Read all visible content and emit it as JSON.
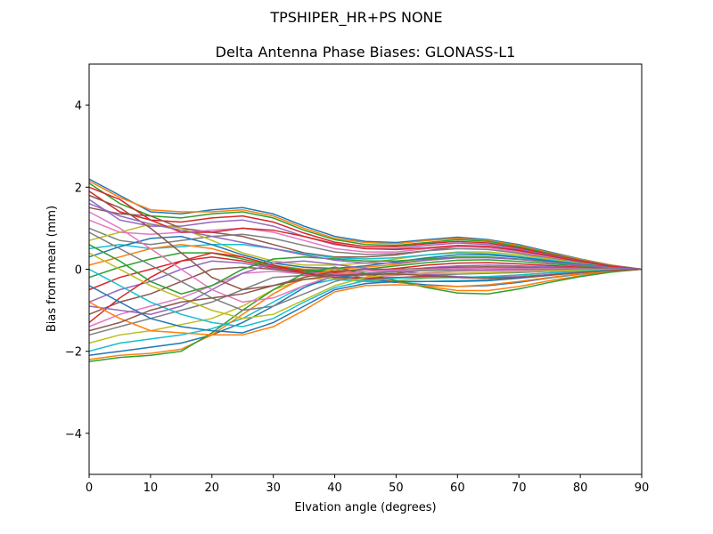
{
  "suptitle": "TPSHIPER_HR+PS  NONE",
  "chart_data": {
    "type": "line",
    "title": "Delta Antenna Phase Biases: GLONASS-L1",
    "xlabel": "Elvation angle (degrees)",
    "ylabel": "Bias from mean (mm)",
    "xlim": [
      0,
      90
    ],
    "ylim": [
      -5,
      5
    ],
    "xticks": [
      0,
      10,
      20,
      30,
      40,
      50,
      60,
      70,
      80,
      90
    ],
    "yticks": [
      -4,
      -2,
      0,
      2,
      4
    ],
    "ytick_labels": [
      "−4",
      "−2",
      "0",
      "2",
      "4"
    ],
    "grid": false,
    "legend": false,
    "colors": [
      "#1f77b4",
      "#ff7f0e",
      "#2ca02c",
      "#d62728",
      "#9467bd",
      "#8c564b",
      "#e377c2",
      "#7f7f7f",
      "#bcbd22",
      "#17becf"
    ],
    "x": [
      0,
      5,
      10,
      15,
      20,
      25,
      30,
      35,
      40,
      45,
      50,
      55,
      60,
      65,
      70,
      75,
      80,
      85,
      90
    ],
    "series": [
      {
        "values": [
          2.2,
          1.8,
          1.4,
          1.35,
          1.45,
          1.5,
          1.35,
          1.05,
          0.8,
          0.68,
          0.65,
          0.72,
          0.78,
          0.72,
          0.6,
          0.42,
          0.25,
          0.1,
          0
        ]
      },
      {
        "values": [
          2.15,
          1.75,
          1.45,
          1.4,
          1.4,
          1.45,
          1.3,
          1.0,
          0.75,
          0.65,
          0.62,
          0.7,
          0.75,
          0.7,
          0.58,
          0.4,
          0.24,
          0.1,
          0
        ]
      },
      {
        "values": [
          2.1,
          1.6,
          1.3,
          1.25,
          1.35,
          1.4,
          1.25,
          0.95,
          0.72,
          0.6,
          0.58,
          0.65,
          0.72,
          0.68,
          0.55,
          0.38,
          0.22,
          0.09,
          0
        ]
      },
      {
        "values": [
          1.9,
          1.4,
          1.2,
          1.15,
          1.25,
          1.3,
          1.15,
          0.88,
          0.66,
          0.55,
          0.55,
          0.62,
          0.68,
          0.64,
          0.52,
          0.36,
          0.21,
          0.08,
          0
        ]
      },
      {
        "values": [
          1.7,
          1.2,
          1.05,
          1.05,
          1.15,
          1.2,
          1.05,
          0.8,
          0.6,
          0.5,
          0.5,
          0.58,
          0.64,
          0.6,
          0.49,
          0.34,
          0.2,
          0.08,
          0
        ]
      },
      {
        "values": [
          1.5,
          1.35,
          1.3,
          1.0,
          0.9,
          0.8,
          0.6,
          0.4,
          0.3,
          0.3,
          0.35,
          0.45,
          0.55,
          0.55,
          0.45,
          0.31,
          0.18,
          0.07,
          0
        ]
      },
      {
        "values": [
          1.2,
          0.9,
          0.85,
          0.9,
          0.95,
          1.0,
          0.9,
          0.7,
          0.5,
          0.42,
          0.42,
          0.5,
          0.55,
          0.52,
          0.42,
          0.3,
          0.17,
          0.07,
          0
        ]
      },
      {
        "values": [
          1.0,
          0.7,
          0.6,
          0.7,
          0.8,
          0.85,
          0.75,
          0.58,
          0.42,
          0.36,
          0.38,
          0.45,
          0.5,
          0.48,
          0.39,
          0.27,
          0.16,
          0.06,
          0
        ]
      },
      {
        "values": [
          0.7,
          0.9,
          1.1,
          1.0,
          0.7,
          0.4,
          0.2,
          0.1,
          0.1,
          0.15,
          0.25,
          0.35,
          0.42,
          0.42,
          0.35,
          0.25,
          0.14,
          0.06,
          0
        ]
      },
      {
        "values": [
          0.5,
          0.6,
          0.5,
          0.55,
          0.6,
          0.6,
          0.5,
          0.38,
          0.28,
          0.25,
          0.28,
          0.35,
          0.4,
          0.38,
          0.31,
          0.22,
          0.13,
          0.05,
          0
        ]
      },
      {
        "values": [
          0.3,
          0.55,
          0.75,
          0.8,
          0.6,
          0.35,
          0.15,
          0.05,
          0.02,
          0.08,
          0.18,
          0.28,
          0.35,
          0.35,
          0.29,
          0.2,
          0.12,
          0.05,
          0
        ]
      },
      {
        "values": [
          0.1,
          0.3,
          0.5,
          0.6,
          0.5,
          0.3,
          0.1,
          0.0,
          0.0,
          0.05,
          0.12,
          0.22,
          0.28,
          0.29,
          0.24,
          0.17,
          0.1,
          0.04,
          0
        ]
      },
      {
        "values": [
          -0.2,
          0.05,
          0.25,
          0.4,
          0.4,
          0.25,
          0.08,
          -0.02,
          -0.05,
          0.0,
          0.08,
          0.16,
          0.22,
          0.23,
          0.19,
          0.13,
          0.08,
          0.03,
          0
        ]
      },
      {
        "values": [
          -0.5,
          -0.2,
          0.0,
          0.2,
          0.3,
          0.2,
          0.05,
          -0.05,
          -0.08,
          -0.05,
          0.02,
          0.1,
          0.15,
          0.16,
          0.13,
          0.09,
          0.05,
          0.02,
          0
        ]
      },
      {
        "values": [
          -0.8,
          -0.5,
          -0.3,
          0.0,
          0.2,
          0.15,
          0.02,
          -0.08,
          -0.12,
          -0.1,
          -0.04,
          0.04,
          0.08,
          0.1,
          0.08,
          0.06,
          0.03,
          0.01,
          0
        ]
      },
      {
        "values": [
          -1.1,
          -0.8,
          -0.6,
          -0.3,
          0.0,
          0.05,
          0.0,
          -0.1,
          -0.15,
          -0.15,
          -0.1,
          -0.02,
          0.02,
          0.03,
          0.03,
          0.02,
          0.01,
          0.0,
          0
        ]
      },
      {
        "values": [
          -1.4,
          -1.1,
          -0.9,
          -0.7,
          -0.4,
          -0.1,
          -0.05,
          -0.12,
          -0.18,
          -0.2,
          -0.15,
          -0.08,
          -0.05,
          -0.04,
          -0.03,
          -0.02,
          -0.01,
          0.0,
          0
        ]
      },
      {
        "values": [
          -1.6,
          -1.4,
          -1.2,
          -1.0,
          -0.8,
          -0.5,
          -0.2,
          -0.15,
          -0.2,
          -0.25,
          -0.22,
          -0.15,
          -0.12,
          -0.1,
          -0.08,
          -0.05,
          -0.03,
          -0.01,
          0
        ]
      },
      {
        "values": [
          -1.8,
          -1.6,
          -1.5,
          -1.35,
          -1.2,
          -0.9,
          -0.5,
          -0.25,
          -0.22,
          -0.28,
          -0.28,
          -0.22,
          -0.2,
          -0.18,
          -0.14,
          -0.09,
          -0.05,
          -0.02,
          0
        ]
      },
      {
        "values": [
          -2.0,
          -1.8,
          -1.7,
          -1.6,
          -1.45,
          -1.2,
          -0.8,
          -0.4,
          -0.25,
          -0.3,
          -0.32,
          -0.3,
          -0.28,
          -0.26,
          -0.2,
          -0.13,
          -0.07,
          -0.03,
          0
        ]
      },
      {
        "values": [
          -2.1,
          -2.0,
          -1.9,
          -1.8,
          -1.6,
          -1.3,
          -0.9,
          -0.45,
          -0.15,
          -0.22,
          -0.32,
          -0.38,
          -0.42,
          -0.4,
          -0.32,
          -0.21,
          -0.12,
          -0.05,
          0
        ]
      },
      {
        "values": [
          -2.2,
          -2.1,
          -2.05,
          -1.95,
          -1.6,
          -1.1,
          -0.6,
          -0.2,
          0.0,
          -0.15,
          -0.3,
          -0.42,
          -0.52,
          -0.52,
          -0.42,
          -0.28,
          -0.16,
          -0.06,
          0
        ]
      },
      {
        "values": [
          -2.25,
          -2.15,
          -2.1,
          -2.0,
          -1.55,
          -1.0,
          -0.5,
          -0.1,
          0.05,
          -0.1,
          -0.28,
          -0.45,
          -0.58,
          -0.6,
          -0.48,
          -0.32,
          -0.18,
          -0.07,
          0
        ]
      },
      {
        "values": [
          -1.3,
          -0.7,
          -0.2,
          0.2,
          0.4,
          0.3,
          0.1,
          -0.1,
          -0.2,
          -0.22,
          -0.2,
          -0.18,
          -0.2,
          -0.22,
          -0.2,
          -0.14,
          -0.08,
          -0.03,
          0
        ]
      },
      {
        "values": [
          -0.9,
          -1.0,
          -1.1,
          -0.9,
          -0.5,
          -0.1,
          0.15,
          0.2,
          0.12,
          0.02,
          -0.05,
          -0.12,
          -0.18,
          -0.2,
          -0.18,
          -0.13,
          -0.07,
          -0.03,
          0
        ]
      },
      {
        "values": [
          1.8,
          1.5,
          1.0,
          0.4,
          -0.2,
          -0.5,
          -0.4,
          -0.2,
          -0.05,
          0.0,
          0.0,
          0.02,
          0.05,
          0.06,
          0.05,
          0.03,
          0.02,
          0.01,
          0
        ]
      },
      {
        "values": [
          1.4,
          1.0,
          0.5,
          0.0,
          -0.5,
          -0.8,
          -0.7,
          -0.4,
          -0.15,
          -0.05,
          -0.02,
          0.0,
          0.02,
          0.03,
          0.02,
          0.02,
          0.01,
          0.0,
          0
        ]
      },
      {
        "values": [
          0.9,
          0.5,
          0.1,
          -0.3,
          -0.7,
          -1.0,
          -0.9,
          -0.6,
          -0.3,
          -0.12,
          -0.06,
          -0.03,
          -0.02,
          -0.01,
          0.0,
          0.0,
          0.0,
          0.0,
          0
        ]
      },
      {
        "values": [
          0.4,
          0.0,
          -0.4,
          -0.7,
          -1.0,
          -1.2,
          -1.1,
          -0.75,
          -0.4,
          -0.2,
          -0.12,
          -0.1,
          -0.1,
          -0.08,
          -0.06,
          -0.04,
          -0.02,
          -0.01,
          0
        ]
      },
      {
        "values": [
          0.0,
          -0.4,
          -0.8,
          -1.1,
          -1.3,
          -1.4,
          -1.2,
          -0.8,
          -0.45,
          -0.28,
          -0.22,
          -0.2,
          -0.2,
          -0.18,
          -0.14,
          -0.09,
          -0.05,
          -0.02,
          0
        ]
      },
      {
        "values": [
          -0.4,
          -0.8,
          -1.2,
          -1.4,
          -1.5,
          -1.55,
          -1.3,
          -0.9,
          -0.5,
          -0.35,
          -0.3,
          -0.3,
          -0.3,
          -0.28,
          -0.22,
          -0.15,
          -0.08,
          -0.03,
          0
        ]
      },
      {
        "values": [
          -0.8,
          -1.2,
          -1.5,
          -1.55,
          -1.6,
          -1.6,
          -1.4,
          -1.0,
          -0.55,
          -0.4,
          -0.38,
          -0.4,
          -0.42,
          -0.38,
          -0.3,
          -0.2,
          -0.11,
          -0.04,
          0
        ]
      },
      {
        "values": [
          0.6,
          0.2,
          -0.3,
          -0.6,
          -0.4,
          0.0,
          0.25,
          0.3,
          0.25,
          0.2,
          0.2,
          0.25,
          0.3,
          0.3,
          0.25,
          0.18,
          0.1,
          0.04,
          0
        ]
      },
      {
        "values": [
          2.0,
          1.7,
          1.2,
          0.9,
          0.9,
          1.0,
          0.95,
          0.8,
          0.62,
          0.5,
          0.48,
          0.52,
          0.58,
          0.56,
          0.46,
          0.32,
          0.19,
          0.07,
          0
        ]
      },
      {
        "values": [
          1.6,
          1.3,
          1.1,
          0.95,
          0.8,
          0.65,
          0.5,
          0.35,
          0.22,
          0.15,
          0.15,
          0.22,
          0.28,
          0.28,
          0.24,
          0.17,
          0.1,
          0.04,
          0
        ]
      },
      {
        "values": [
          -1.5,
          -1.3,
          -1.0,
          -0.8,
          -0.7,
          -0.6,
          -0.4,
          -0.25,
          -0.15,
          -0.12,
          -0.12,
          -0.15,
          -0.2,
          -0.22,
          -0.2,
          -0.14,
          -0.08,
          -0.03,
          0
        ]
      }
    ]
  }
}
